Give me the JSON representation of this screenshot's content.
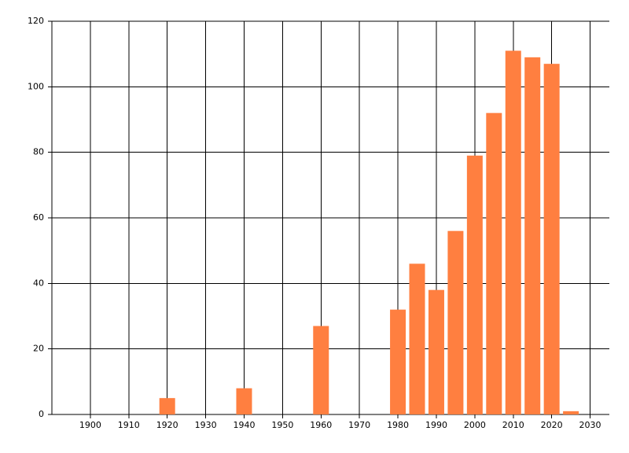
{
  "chart_data": {
    "type": "bar",
    "x": [
      1920,
      1940,
      1960,
      1980,
      1985,
      1990,
      1995,
      2000,
      2005,
      2010,
      2015,
      2020,
      2025
    ],
    "values": [
      5,
      8,
      27,
      32,
      46,
      38,
      56,
      79,
      92,
      111,
      109,
      107,
      1
    ],
    "color": "#ff7f40",
    "xlim": [
      1890,
      2035
    ],
    "xticks": [
      1900,
      1910,
      1920,
      1930,
      1940,
      1950,
      1960,
      1970,
      1980,
      1990,
      2000,
      2010,
      2020,
      2030
    ],
    "ylim": [
      0,
      120
    ],
    "yticks": [
      0,
      20,
      40,
      60,
      80,
      100,
      120
    ],
    "grid": true
  }
}
